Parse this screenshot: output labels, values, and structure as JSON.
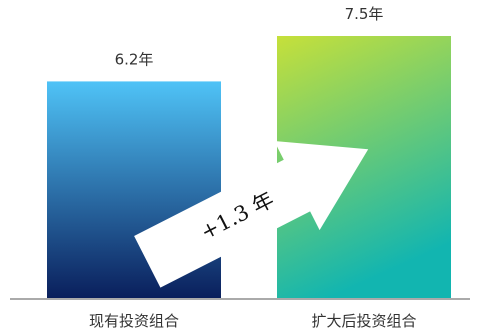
{
  "chart_data": {
    "type": "bar",
    "title": "",
    "xlabel": "",
    "ylabel": "",
    "ylim": [
      0,
      7.5
    ],
    "grid": false,
    "legend": "none",
    "categories": [
      "现有投资组合",
      "扩大后投资组合"
    ],
    "values": [
      6.2,
      7.5
    ],
    "value_labels": [
      "6.2年",
      "7.5年"
    ],
    "annotation": {
      "text": "+1.3 年",
      "type": "arrow",
      "from_category": 0,
      "to_category": 1
    },
    "colors": {
      "bar0_top": "#4fc3f7",
      "bar0_bottom": "#0a1f5c",
      "bar1_top": "#c6e03a",
      "bar1_bottom": "#12b5b0",
      "baseline": "#aaaaaa"
    }
  }
}
